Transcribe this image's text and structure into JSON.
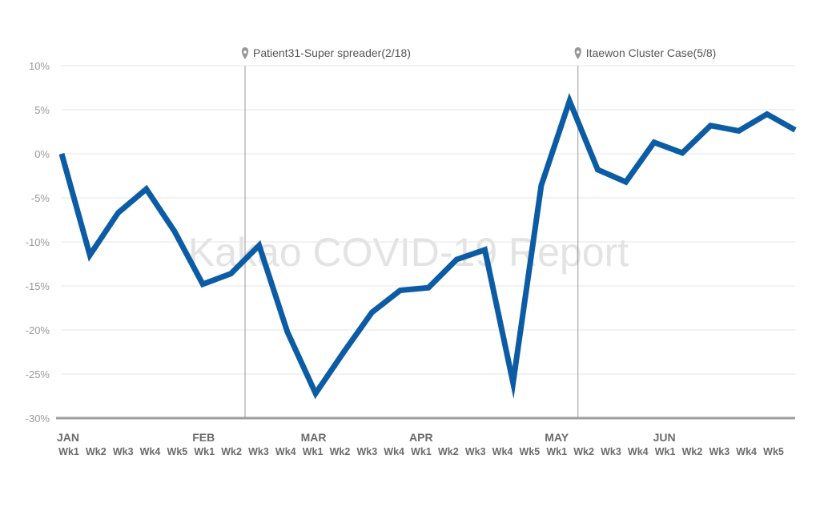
{
  "watermark": "Kakao COVID-19 Report",
  "colors": {
    "line": "#0b5ca5",
    "grid": "#e6e6e6",
    "axis": "#9e9e9e",
    "marker": "#999999"
  },
  "chart_data": {
    "type": "line",
    "title": "",
    "xlabel": "",
    "ylabel": "",
    "ylim": [
      -30,
      10
    ],
    "yticks": [
      10,
      5,
      0,
      -5,
      -10,
      -15,
      -20,
      -25,
      -30
    ],
    "ytick_labels": [
      "10%",
      "5%",
      "0%",
      "-5%",
      "-10%",
      "-15%",
      "-20%",
      "-25%",
      "-30%"
    ],
    "grid": true,
    "categories": [
      "Wk1",
      "Wk2",
      "Wk3",
      "Wk4",
      "Wk5",
      "Wk1",
      "Wk2",
      "Wk3",
      "Wk4",
      "Wk1",
      "Wk2",
      "Wk3",
      "Wk4",
      "Wk1",
      "Wk2",
      "Wk3",
      "Wk4",
      "Wk5",
      "Wk1",
      "Wk2",
      "Wk3",
      "Wk4",
      "Wk1",
      "Wk2",
      "Wk3",
      "Wk4",
      "Wk5"
    ],
    "months": [
      {
        "label": "JAN",
        "index": 0
      },
      {
        "label": "FEB",
        "index": 5
      },
      {
        "label": "MAR",
        "index": 9
      },
      {
        "label": "APR",
        "index": 13
      },
      {
        "label": "MAY",
        "index": 18
      },
      {
        "label": "JUN",
        "index": 22
      }
    ],
    "series": [
      {
        "values": [
          0,
          -11.5,
          -6.7,
          -4,
          -8.8,
          -14.8,
          -13.6,
          -10.4,
          -20.2,
          -27.2,
          -22.5,
          -18,
          -15.5,
          -15.2,
          -12,
          -10.9,
          -26,
          -3.6,
          6,
          -1.8,
          -3.2,
          1.3,
          0.1,
          3.2,
          2.6,
          4.5,
          2.7
        ]
      }
    ],
    "annotations": [
      {
        "text": "Patient31-Super spreader(2/18)",
        "x": 6.5
      },
      {
        "text": "Itaewon Cluster Case(5/8)",
        "x": 18.3
      }
    ]
  }
}
